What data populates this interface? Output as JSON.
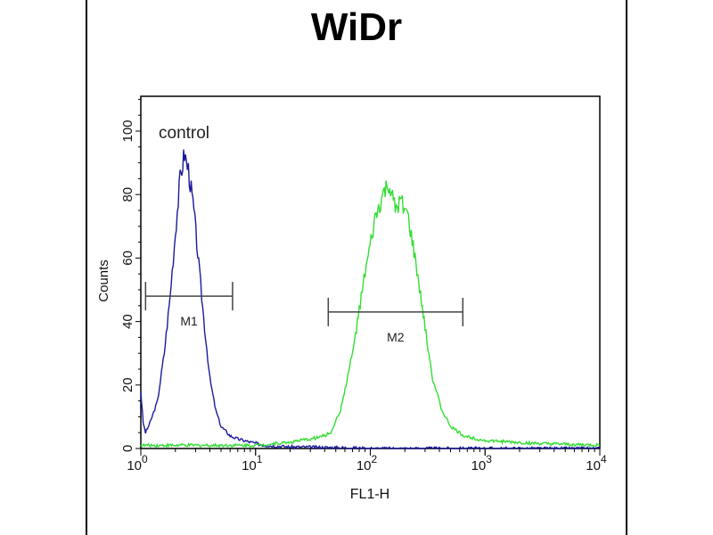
{
  "chart_data": {
    "type": "line",
    "title": "WiDr",
    "xlabel": "FL1-H",
    "ylabel": "Counts",
    "x_scale": "log",
    "xlim": [
      1,
      10000
    ],
    "ylim": [
      0,
      110
    ],
    "x_ticks": [
      {
        "base": "10",
        "exp": "0"
      },
      {
        "base": "10",
        "exp": "1"
      },
      {
        "base": "10",
        "exp": "2"
      },
      {
        "base": "10",
        "exp": "3"
      },
      {
        "base": "10",
        "exp": "4"
      }
    ],
    "y_ticks": [
      "0",
      "20",
      "40",
      "60",
      "80",
      "100"
    ],
    "grid": false,
    "annotations": {
      "control_label": "control"
    },
    "series": [
      {
        "color": "#1a1a9a",
        "x": [
          1.0,
          1.05,
          1.1,
          1.2,
          1.4,
          1.6,
          1.8,
          2.0,
          2.2,
          2.4,
          2.5,
          2.6,
          2.9,
          3.2,
          3.6,
          4.0,
          4.5,
          5,
          6,
          7,
          9,
          12,
          20,
          50,
          100,
          10000
        ],
        "y": [
          18,
          8,
          5,
          8,
          15,
          30,
          48,
          68,
          85,
          93,
          90,
          88,
          75,
          58,
          38,
          22,
          12,
          7,
          4,
          3,
          2,
          1,
          0.5,
          0.3,
          0,
          0
        ]
      },
      {
        "color": "#33dd33",
        "x": [
          1,
          10,
          20,
          30,
          40,
          45,
          55,
          70,
          90,
          110,
          130,
          145,
          165,
          190,
          215,
          250,
          300,
          350,
          420,
          500,
          650,
          1000,
          3000,
          10000
        ],
        "y": [
          1,
          1,
          2,
          3,
          4,
          5,
          12,
          30,
          55,
          72,
          80,
          83,
          75,
          78,
          72,
          58,
          38,
          22,
          12,
          7,
          4,
          2.5,
          1.5,
          1
        ]
      }
    ],
    "markers": [
      {
        "label": "M1",
        "range": [
          1.1,
          6.3
        ],
        "y": 48
      },
      {
        "label": "M2",
        "range": [
          43,
          640
        ],
        "y": 43
      }
    ]
  }
}
